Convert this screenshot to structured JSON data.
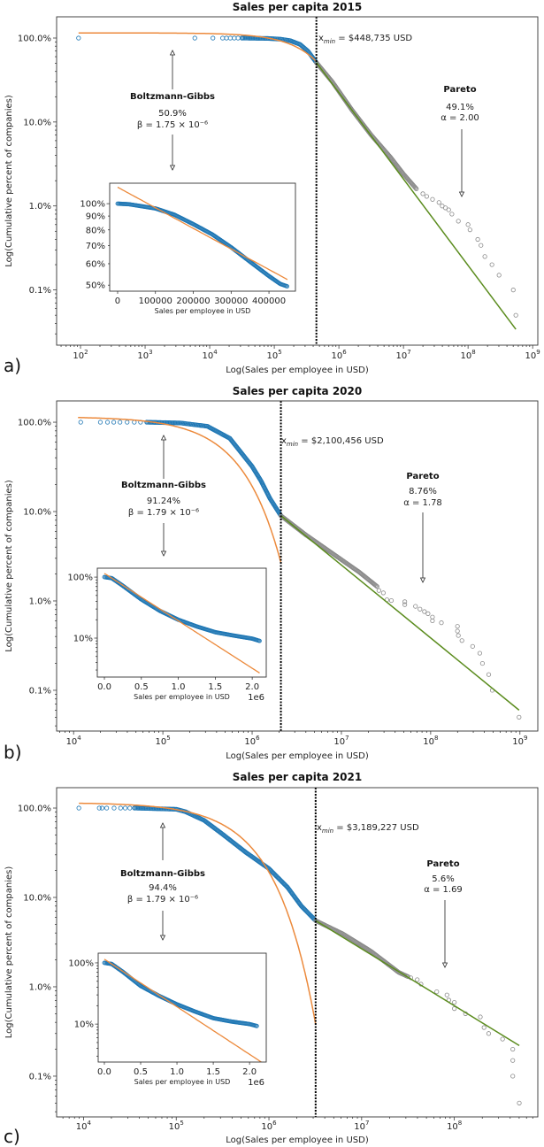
{
  "colors": {
    "empirical": "#1f77b4",
    "tail": "#8a8a8a",
    "bg_fit": "#ec8a3c",
    "pareto_fit": "#5b8c1e",
    "xmin_line": "#000000"
  },
  "chart_data": [
    {
      "type": "scatter",
      "panel_label": "a)",
      "title": "Sales per capita 2015",
      "xlabel": "Log(Sales per employee in USD)",
      "ylabel": "Log(Cumulative percent of companies)",
      "x_scale": "log",
      "y_scale": "log",
      "x_log10_range": [
        1.63,
        9.08
      ],
      "y_pct_range": [
        0.022,
        179
      ],
      "x_tick_base": "10",
      "x_ticks_exp": [
        2,
        3,
        4,
        5,
        6,
        7,
        8,
        9
      ],
      "y_ticks": [
        {
          "v": 100,
          "label": "100.0%"
        },
        {
          "v": 10,
          "label": "10.0%"
        },
        {
          "v": 1,
          "label": "1.0%"
        },
        {
          "v": 0.1,
          "label": "0.1%"
        }
      ],
      "xmin_usd": 448735,
      "xmin_symbol": "x",
      "xmin_sub": "min",
      "xmin_label": " = $448,735 USD",
      "empirical_below_xmin": {
        "sparse": [
          [
            1.97,
            100
          ],
          [
            3.77,
            100
          ],
          [
            4.05,
            100
          ],
          [
            4.2,
            100
          ],
          [
            4.26,
            100
          ],
          [
            4.32,
            100
          ],
          [
            4.38,
            100
          ],
          [
            4.44,
            100
          ],
          [
            4.5,
            100
          ]
        ],
        "dense": [
          [
            4.5,
            100
          ],
          [
            4.9,
            99
          ],
          [
            5.1,
            97
          ],
          [
            5.25,
            93
          ],
          [
            5.4,
            84
          ],
          [
            5.52,
            70
          ],
          [
            5.652,
            51
          ]
        ]
      },
      "empirical_above_xmin": {
        "dense": [
          [
            5.652,
            51
          ],
          [
            5.9,
            30
          ],
          [
            6.2,
            14
          ],
          [
            6.5,
            7
          ],
          [
            6.8,
            3.8
          ],
          [
            7.0,
            2.4
          ],
          [
            7.2,
            1.6
          ]
        ],
        "sparse": [
          [
            7.3,
            1.4
          ],
          [
            7.36,
            1.3
          ],
          [
            7.45,
            1.2
          ],
          [
            7.55,
            1.1
          ],
          [
            7.6,
            1.0
          ],
          [
            7.65,
            0.95
          ],
          [
            7.7,
            0.9
          ],
          [
            7.75,
            0.8
          ],
          [
            7.85,
            0.66
          ],
          [
            8.0,
            0.6
          ],
          [
            8.03,
            0.52
          ],
          [
            8.15,
            0.4
          ],
          [
            8.2,
            0.34
          ],
          [
            8.26,
            0.25
          ],
          [
            8.37,
            0.2
          ],
          [
            8.48,
            0.15
          ],
          [
            8.7,
            0.1
          ],
          [
            8.74,
            0.05
          ]
        ]
      },
      "bg_fit": {
        "beta": 1.75e-06,
        "amplitude_pct": 115,
        "x_log10_from": 1.97
      },
      "pareto_fit": {
        "alpha": 2.0,
        "from": [
          5.652,
          51
        ],
        "to": [
          8.74,
          0.034
        ]
      },
      "bg_annotation": {
        "name": "Boltzmann-Gibbs",
        "share": "50.9%",
        "param": "β = 1.75 × 10⁻⁶"
      },
      "pareto_annotation": {
        "name": "Pareto",
        "share": "49.1%",
        "param": "α = 2.00"
      },
      "inset": {
        "xlabel": "Sales per employee in USD",
        "x_range": [
          -21000,
          470000
        ],
        "y_pct_range": [
          47.5,
          119
        ],
        "x_ticks": [
          {
            "v": 0,
            "label": "0"
          },
          {
            "v": 100000,
            "label": "100000"
          },
          {
            "v": 200000,
            "label": "200000"
          },
          {
            "v": 300000,
            "label": "300000"
          },
          {
            "v": 400000,
            "label": "400000"
          }
        ],
        "x_offset_label": "",
        "y_ticks": [
          {
            "v": 100,
            "label": "100%"
          },
          {
            "v": 90,
            "label": "90%"
          },
          {
            "v": 80,
            "label": "80%"
          },
          {
            "v": 70,
            "label": "70%"
          },
          {
            "v": 60,
            "label": "60%"
          },
          {
            "v": 50,
            "label": "50%"
          }
        ],
        "empirical": [
          [
            0,
            100
          ],
          [
            30000,
            99.5
          ],
          [
            100000,
            96
          ],
          [
            150000,
            91
          ],
          [
            200000,
            84
          ],
          [
            250000,
            77
          ],
          [
            300000,
            69
          ],
          [
            350000,
            61
          ],
          [
            400000,
            54
          ],
          [
            430000,
            50.5
          ],
          [
            448000,
            49.5
          ]
        ]
      }
    },
    {
      "type": "scatter",
      "panel_label": "b)",
      "title": "Sales per capita 2020",
      "xlabel": "Log(Sales per employee in USD)",
      "ylabel": "Log(Cumulative percent of companies)",
      "x_scale": "log",
      "y_scale": "log",
      "x_log10_range": [
        3.81,
        9.2
      ],
      "y_pct_range": [
        0.035,
        173
      ],
      "x_tick_base": "10",
      "x_ticks_exp": [
        4,
        5,
        6,
        7,
        8,
        9
      ],
      "y_ticks": [
        {
          "v": 100,
          "label": "100.0%"
        },
        {
          "v": 10,
          "label": "10.0%"
        },
        {
          "v": 1,
          "label": "1.0%"
        },
        {
          "v": 0.1,
          "label": "0.1%"
        }
      ],
      "xmin_usd": 2100456,
      "xmin_symbol": "x",
      "xmin_sub": "min",
      "xmin_label": " =  $2,100,456 USD",
      "empirical_below_xmin": {
        "sparse": [
          [
            4.08,
            100
          ],
          [
            4.3,
            100
          ],
          [
            4.38,
            100
          ],
          [
            4.45,
            100
          ],
          [
            4.52,
            100
          ],
          [
            4.6,
            100
          ],
          [
            4.68,
            100
          ],
          [
            4.75,
            100
          ],
          [
            4.82,
            100
          ]
        ],
        "dense": [
          [
            4.82,
            100
          ],
          [
            5.2,
            98
          ],
          [
            5.5,
            90
          ],
          [
            5.75,
            66
          ],
          [
            6.0,
            32
          ],
          [
            6.1,
            22
          ],
          [
            6.2,
            14
          ],
          [
            6.322,
            9
          ]
        ]
      },
      "empirical_above_xmin": {
        "dense": [
          [
            6.322,
            9
          ],
          [
            6.6,
            5.5
          ],
          [
            6.9,
            3.4
          ],
          [
            7.2,
            2.1
          ],
          [
            7.4,
            1.45
          ]
        ],
        "sparse": [
          [
            7.42,
            1.31
          ],
          [
            7.47,
            1.23
          ],
          [
            7.51,
            1.03
          ],
          [
            7.56,
            1.01
          ],
          [
            7.71,
            0.98
          ],
          [
            7.71,
            0.91
          ],
          [
            7.83,
            0.87
          ],
          [
            7.88,
            0.81
          ],
          [
            7.93,
            0.76
          ],
          [
            7.97,
            0.72
          ],
          [
            8.02,
            0.66
          ],
          [
            8.02,
            0.6
          ],
          [
            8.12,
            0.57
          ],
          [
            8.3,
            0.52
          ],
          [
            8.3,
            0.46
          ],
          [
            8.31,
            0.41
          ],
          [
            8.35,
            0.36
          ],
          [
            8.47,
            0.31
          ],
          [
            8.55,
            0.26
          ],
          [
            8.58,
            0.2
          ],
          [
            8.65,
            0.15
          ],
          [
            8.69,
            0.1
          ],
          [
            8.99,
            0.05
          ]
        ]
      },
      "bg_fit": {
        "beta": 1.79e-06,
        "amplitude_pct": 115,
        "x_log10_from": 4.05
      },
      "pareto_fit": {
        "alpha": 1.78,
        "from": [
          6.322,
          9
        ],
        "to": [
          8.99,
          0.06
        ]
      },
      "bg_annotation": {
        "name": "Boltzmann-Gibbs",
        "share": "91.24%",
        "param": "β = 1.79 × 10⁻⁶"
      },
      "pareto_annotation": {
        "name": "Pareto",
        "share": "8.76%",
        "param": "α = 1.78"
      },
      "inset": {
        "xlabel": "Sales per employee in USD",
        "x_range": [
          -96000,
          2190000
        ],
        "y_pct_range": [
          2.3,
          140
        ],
        "x_ticks": [
          {
            "v": 0,
            "label": "0.0"
          },
          {
            "v": 500000,
            "label": "0.5"
          },
          {
            "v": 1000000,
            "label": "1.0"
          },
          {
            "v": 1500000,
            "label": "1.5"
          },
          {
            "v": 2000000,
            "label": "2.0"
          }
        ],
        "x_offset_label": "1e6",
        "y_ticks": [
          {
            "v": 100,
            "label": "100%"
          },
          {
            "v": 10,
            "label": "10%"
          }
        ],
        "empirical": [
          [
            0,
            100
          ],
          [
            100000,
            96
          ],
          [
            250000,
            72
          ],
          [
            500000,
            43
          ],
          [
            750000,
            28
          ],
          [
            1000000,
            20
          ],
          [
            1250000,
            15.5
          ],
          [
            1500000,
            12.5
          ],
          [
            1750000,
            11
          ],
          [
            2000000,
            9.8
          ],
          [
            2100000,
            9
          ]
        ]
      }
    },
    {
      "type": "scatter",
      "panel_label": "c)",
      "title": "Sales per capita 2021",
      "xlabel": "Log(Sales per employee in USD)",
      "ylabel": "Log(Cumulative percent of companies)",
      "x_scale": "log",
      "y_scale": "log",
      "x_log10_range": [
        3.71,
        8.9
      ],
      "y_pct_range": [
        0.035,
        169
      ],
      "x_tick_base": "10",
      "x_ticks_exp": [
        4,
        5,
        6,
        7,
        8
      ],
      "y_ticks": [
        {
          "v": 100,
          "label": "100.0%"
        },
        {
          "v": 10,
          "label": "10.0%"
        },
        {
          "v": 1,
          "label": "1.0%"
        },
        {
          "v": 0.1,
          "label": "0.1%"
        }
      ],
      "xmin_usd": 3189227,
      "xmin_symbol": "x",
      "xmin_sub": "min",
      "xmin_label": " =  $3,189,227 USD",
      "empirical_below_xmin": {
        "sparse": [
          [
            3.95,
            100
          ],
          [
            4.17,
            100
          ],
          [
            4.2,
            100
          ],
          [
            4.25,
            100
          ],
          [
            4.33,
            100
          ],
          [
            4.4,
            100
          ],
          [
            4.45,
            100
          ],
          [
            4.5,
            100
          ],
          [
            4.55,
            100
          ]
        ],
        "dense": [
          [
            4.55,
            100
          ],
          [
            5.0,
            97
          ],
          [
            5.1,
            91
          ],
          [
            5.3,
            73
          ],
          [
            5.5,
            51
          ],
          [
            5.75,
            32
          ],
          [
            6.0,
            21
          ],
          [
            6.2,
            13
          ],
          [
            6.35,
            8
          ],
          [
            6.504,
            5.5
          ]
        ]
      },
      "empirical_above_xmin": {
        "dense": [
          [
            6.504,
            5.5
          ],
          [
            6.8,
            3.9
          ],
          [
            7.1,
            2.5
          ],
          [
            7.4,
            1.45
          ],
          [
            7.5,
            1.3
          ]
        ],
        "sparse": [
          [
            7.53,
            1.26
          ],
          [
            7.6,
            1.2
          ],
          [
            7.64,
            1.07
          ],
          [
            7.81,
            0.88
          ],
          [
            7.92,
            0.81
          ],
          [
            7.94,
            0.71
          ],
          [
            8.0,
            0.67
          ],
          [
            8.0,
            0.57
          ],
          [
            8.12,
            0.5
          ],
          [
            8.28,
            0.46
          ],
          [
            8.32,
            0.35
          ],
          [
            8.37,
            0.3
          ],
          [
            8.52,
            0.26
          ],
          [
            8.63,
            0.2
          ],
          [
            8.63,
            0.15
          ],
          [
            8.63,
            0.1
          ],
          [
            8.7,
            0.05
          ]
        ]
      },
      "bg_fit": {
        "beta": 1.79e-06,
        "amplitude_pct": 115,
        "x_log10_from": 3.95
      },
      "pareto_fit": {
        "alpha": 1.69,
        "from": [
          6.504,
          5.5
        ],
        "to": [
          8.7,
          0.22
        ]
      },
      "bg_annotation": {
        "name": "Boltzmann-Gibbs",
        "share": "94.4%",
        "param": "β = 1.79 × 10⁻⁶"
      },
      "pareto_annotation": {
        "name": "Pareto",
        "share": "5.6%",
        "param": "α = 1.69"
      },
      "inset": {
        "xlabel": "Sales per employee in USD",
        "x_range": [
          -85000,
          2230000
        ],
        "y_pct_range": [
          2.4,
          144
        ],
        "x_ticks": [
          {
            "v": 0,
            "label": "0.0"
          },
          {
            "v": 500000,
            "label": "0.5"
          },
          {
            "v": 1000000,
            "label": "1.0"
          },
          {
            "v": 1500000,
            "label": "1.5"
          },
          {
            "v": 2000000,
            "label": "2.0"
          }
        ],
        "x_offset_label": "1e6",
        "y_ticks": [
          {
            "v": 100,
            "label": "100%"
          },
          {
            "v": 10,
            "label": "10%"
          }
        ],
        "empirical": [
          [
            0,
            100
          ],
          [
            100000,
            96
          ],
          [
            250000,
            72
          ],
          [
            500000,
            42
          ],
          [
            750000,
            29
          ],
          [
            1000000,
            21
          ],
          [
            1250000,
            16
          ],
          [
            1500000,
            12.5
          ],
          [
            1750000,
            11
          ],
          [
            2000000,
            10
          ],
          [
            2100000,
            9.3
          ]
        ]
      }
    }
  ]
}
